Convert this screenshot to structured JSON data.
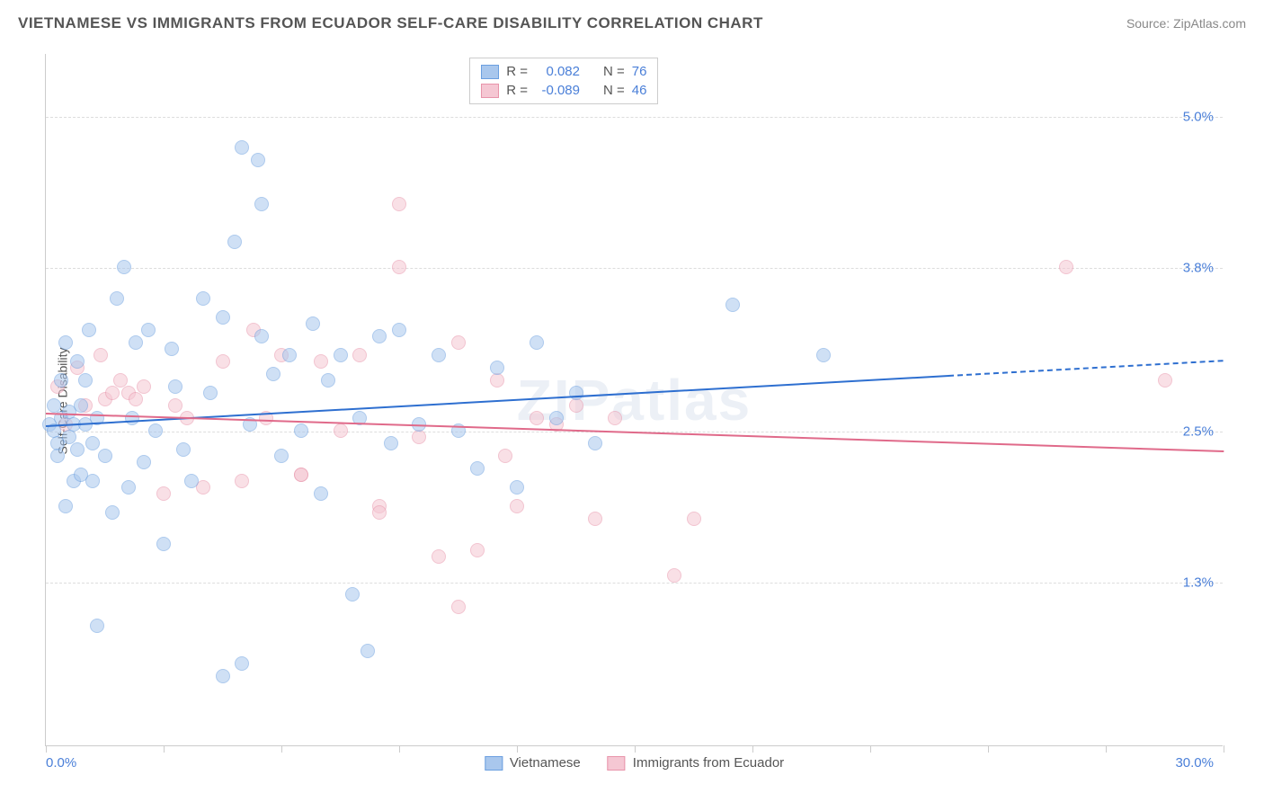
{
  "header": {
    "title": "VIETNAMESE VS IMMIGRANTS FROM ECUADOR SELF-CARE DISABILITY CORRELATION CHART",
    "source": "Source: ZipAtlas.com"
  },
  "watermark": "ZIPatlas",
  "chart": {
    "type": "scatter",
    "ylabel": "Self-Care Disability",
    "xlim": [
      0,
      30
    ],
    "ylim": [
      0,
      5.5
    ],
    "background_color": "#ffffff",
    "grid_color": "#dddddd",
    "axis_color": "#cccccc",
    "ytick_positions": [
      1.3,
      2.5,
      3.8,
      5.0
    ],
    "ytick_labels": [
      "1.3%",
      "2.5%",
      "3.8%",
      "5.0%"
    ],
    "xtick_positions": [
      0,
      3,
      6,
      9,
      12,
      15,
      18,
      21,
      24,
      27,
      30
    ],
    "x_start_label": "0.0%",
    "x_end_label": "30.0%",
    "label_color": "#4a7fd8",
    "axis_label_color": "#555555",
    "axis_label_fontsize": 14,
    "tick_fontsize": 15,
    "marker_radius": 8,
    "marker_opacity": 0.55
  },
  "series": {
    "a": {
      "label": "Vietnamese",
      "fill_color": "#a9c7ed",
      "stroke_color": "#6b9fe0",
      "line_color": "#2e6fd0",
      "R": "0.082",
      "N": "76",
      "regression": {
        "x1": 0,
        "y1": 2.55,
        "x2": 23,
        "y2": 2.95,
        "x2_dashed": 30,
        "y2_dashed": 3.07
      },
      "points": [
        [
          0.1,
          2.55
        ],
        [
          0.2,
          2.5
        ],
        [
          0.2,
          2.7
        ],
        [
          0.3,
          2.4
        ],
        [
          0.3,
          2.3
        ],
        [
          0.4,
          2.9
        ],
        [
          0.4,
          2.6
        ],
        [
          0.5,
          3.2
        ],
        [
          0.5,
          1.9
        ],
        [
          0.6,
          2.45
        ],
        [
          0.6,
          2.65
        ],
        [
          0.7,
          2.1
        ],
        [
          0.7,
          2.55
        ],
        [
          0.8,
          3.05
        ],
        [
          0.8,
          2.35
        ],
        [
          0.9,
          2.7
        ],
        [
          0.9,
          2.15
        ],
        [
          1.0,
          2.55
        ],
        [
          1.0,
          2.9
        ],
        [
          1.1,
          3.3
        ],
        [
          1.2,
          2.4
        ],
        [
          1.2,
          2.1
        ],
        [
          1.3,
          2.6
        ],
        [
          1.5,
          2.3
        ],
        [
          1.3,
          0.95
        ],
        [
          1.7,
          1.85
        ],
        [
          1.8,
          3.55
        ],
        [
          2.0,
          3.8
        ],
        [
          2.2,
          2.6
        ],
        [
          2.3,
          3.2
        ],
        [
          2.5,
          2.25
        ],
        [
          2.6,
          3.3
        ],
        [
          2.8,
          2.5
        ],
        [
          3.0,
          1.6
        ],
        [
          3.2,
          3.15
        ],
        [
          3.5,
          2.35
        ],
        [
          3.7,
          2.1
        ],
        [
          4.0,
          3.55
        ],
        [
          4.2,
          2.8
        ],
        [
          4.5,
          3.4
        ],
        [
          4.5,
          0.55
        ],
        [
          4.8,
          4.0
        ],
        [
          5.0,
          4.75
        ],
        [
          5.0,
          0.65
        ],
        [
          5.2,
          2.55
        ],
        [
          5.4,
          4.65
        ],
        [
          5.5,
          3.25
        ],
        [
          5.5,
          4.3
        ],
        [
          5.8,
          2.95
        ],
        [
          6.0,
          2.3
        ],
        [
          6.2,
          3.1
        ],
        [
          6.5,
          2.5
        ],
        [
          6.8,
          3.35
        ],
        [
          7.0,
          2.0
        ],
        [
          7.2,
          2.9
        ],
        [
          7.5,
          3.1
        ],
        [
          7.8,
          1.2
        ],
        [
          8.0,
          2.6
        ],
        [
          8.2,
          0.75
        ],
        [
          8.5,
          3.25
        ],
        [
          8.8,
          2.4
        ],
        [
          9.0,
          3.3
        ],
        [
          9.5,
          2.55
        ],
        [
          10.0,
          3.1
        ],
        [
          10.5,
          2.5
        ],
        [
          11.0,
          2.2
        ],
        [
          11.5,
          3.0
        ],
        [
          12.0,
          2.05
        ],
        [
          12.5,
          3.2
        ],
        [
          13.0,
          2.6
        ],
        [
          13.5,
          2.8
        ],
        [
          14.0,
          2.4
        ],
        [
          17.5,
          3.5
        ],
        [
          19.8,
          3.1
        ],
        [
          2.1,
          2.05
        ],
        [
          3.3,
          2.85
        ]
      ]
    },
    "b": {
      "label": "Immigrants from Ecuador",
      "fill_color": "#f5c7d3",
      "stroke_color": "#e894aa",
      "line_color": "#e06a8a",
      "R": "-0.089",
      "N": "46",
      "regression": {
        "x1": 0,
        "y1": 2.65,
        "x2": 30,
        "y2": 2.35
      },
      "points": [
        [
          0.3,
          2.85
        ],
        [
          0.5,
          2.55
        ],
        [
          0.8,
          3.0
        ],
        [
          1.0,
          2.7
        ],
        [
          1.4,
          3.1
        ],
        [
          1.5,
          2.75
        ],
        [
          1.7,
          2.8
        ],
        [
          1.9,
          2.9
        ],
        [
          2.1,
          2.8
        ],
        [
          2.3,
          2.75
        ],
        [
          2.5,
          2.85
        ],
        [
          3.0,
          2.0
        ],
        [
          3.3,
          2.7
        ],
        [
          3.6,
          2.6
        ],
        [
          4.0,
          2.05
        ],
        [
          4.5,
          3.05
        ],
        [
          5.0,
          2.1
        ],
        [
          5.3,
          3.3
        ],
        [
          5.6,
          2.6
        ],
        [
          6.0,
          3.1
        ],
        [
          6.5,
          2.15
        ],
        [
          6.5,
          2.15
        ],
        [
          7.0,
          3.05
        ],
        [
          7.5,
          2.5
        ],
        [
          8.0,
          3.1
        ],
        [
          8.5,
          1.9
        ],
        [
          8.5,
          1.85
        ],
        [
          9.0,
          4.3
        ],
        [
          9.0,
          3.8
        ],
        [
          9.5,
          2.45
        ],
        [
          10.0,
          1.5
        ],
        [
          10.5,
          3.2
        ],
        [
          10.5,
          1.1
        ],
        [
          11.0,
          1.55
        ],
        [
          11.5,
          2.9
        ],
        [
          12.0,
          1.9
        ],
        [
          12.5,
          2.6
        ],
        [
          13.0,
          2.55
        ],
        [
          13.5,
          2.7
        ],
        [
          14.0,
          1.8
        ],
        [
          14.5,
          2.6
        ],
        [
          16.0,
          1.35
        ],
        [
          16.5,
          1.8
        ],
        [
          26.0,
          3.8
        ],
        [
          28.5,
          2.9
        ],
        [
          11.7,
          2.3
        ]
      ]
    }
  },
  "legend": {
    "R_label": "R =",
    "N_label": "N ="
  }
}
